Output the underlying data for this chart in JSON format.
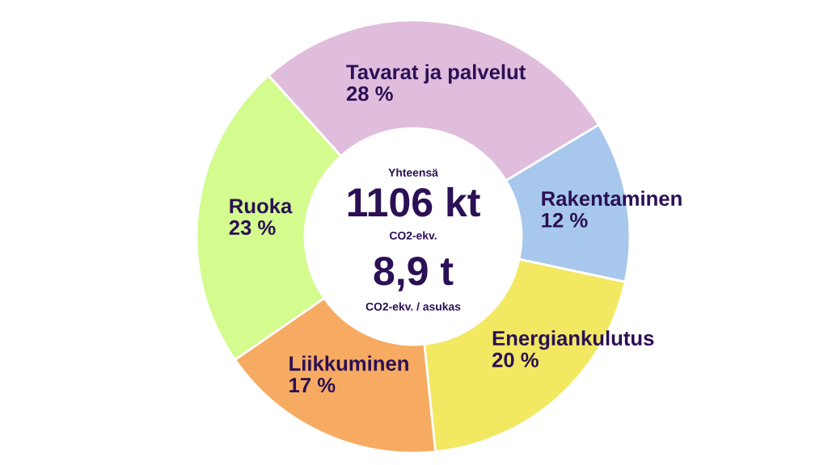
{
  "chart_data": {
    "type": "donut",
    "categories": [
      "Tavarat ja palvelut",
      "Rakentaminen",
      "Energiankulutus",
      "Liikkuminen",
      "Ruoka"
    ],
    "values": [
      28,
      12,
      20,
      17,
      23
    ],
    "colors": [
      "#e0bddc",
      "#a7c8ec",
      "#f2e862",
      "#f7ab62",
      "#d3fb8d"
    ],
    "value_labels": [
      "28 %",
      "12 %",
      "20 %",
      "17 %",
      "23 %"
    ],
    "annotations": [
      "Yhteensä",
      "1106 kt",
      "CO2-ekv.",
      "8,9 t",
      "CO2-ekv. / asukas"
    ]
  }
}
